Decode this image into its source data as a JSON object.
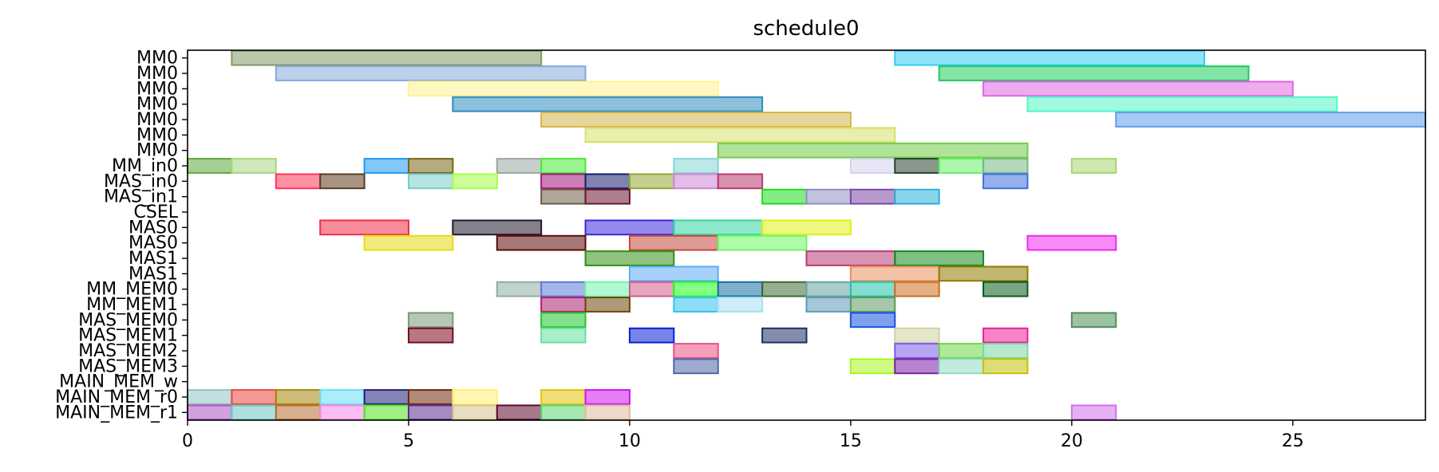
{
  "chart_data": {
    "type": "gantt",
    "title": "schedule0",
    "xlim": [
      0,
      28
    ],
    "xticks": [
      0,
      5,
      10,
      15,
      20,
      25
    ],
    "rows": [
      "MM0",
      "MM0",
      "MM0",
      "MM0",
      "MM0",
      "MM0",
      "MM0",
      "MM_in0",
      "MAS_in0",
      "MAS_in1",
      "CSEL",
      "MAS0",
      "MAS0",
      "MAS1",
      "MAS1",
      "MM_MEM0",
      "MM_MEM1",
      "MAS_MEM0",
      "MAS_MEM1",
      "MAS_MEM2",
      "MAS_MEM3",
      "MAIN_MEM_w",
      "MAIN_MEM_r0",
      "MAIN_MEM_r1"
    ],
    "bars": [
      {
        "row": 0,
        "start": 1,
        "end": 8,
        "color": "#7f9966"
      },
      {
        "row": 0,
        "start": 16,
        "end": 23,
        "color": "#33ccf5"
      },
      {
        "row": 1,
        "start": 2,
        "end": 9,
        "color": "#85a8db"
      },
      {
        "row": 1,
        "start": 17,
        "end": 24,
        "color": "#1fcc5c"
      },
      {
        "row": 2,
        "start": 5,
        "end": 12,
        "color": "#fff38f"
      },
      {
        "row": 2,
        "start": 18,
        "end": 25,
        "color": "#e066e0"
      },
      {
        "row": 3,
        "start": 6,
        "end": 13,
        "color": "#2e8cbf"
      },
      {
        "row": 3,
        "start": 19,
        "end": 26,
        "color": "#52f5c7"
      },
      {
        "row": 4,
        "start": 8,
        "end": 15,
        "color": "#d4b547"
      },
      {
        "row": 4,
        "start": 21,
        "end": 28,
        "color": "#5c9eeb"
      },
      {
        "row": 5,
        "start": 9,
        "end": 16,
        "color": "#d6e066"
      },
      {
        "row": 6,
        "start": 12,
        "end": 19,
        "color": "#70cc47"
      },
      {
        "row": 7,
        "start": 0,
        "end": 1,
        "color": "#5ca83d"
      },
      {
        "row": 7,
        "start": 1,
        "end": 2,
        "color": "#a8d680"
      },
      {
        "row": 7,
        "start": 4,
        "end": 5,
        "color": "#1f99f5"
      },
      {
        "row": 7,
        "start": 5,
        "end": 6,
        "color": "#7a6614"
      },
      {
        "row": 7,
        "start": 7,
        "end": 8,
        "color": "#99a89e"
      },
      {
        "row": 7,
        "start": 8,
        "end": 9,
        "color": "#47eb33"
      },
      {
        "row": 7,
        "start": 11,
        "end": 12,
        "color": "#85d6d6"
      },
      {
        "row": 7,
        "start": 15,
        "end": 16,
        "color": "#d1d1f0"
      },
      {
        "row": 7,
        "start": 16,
        "end": 17,
        "color": "#29422e"
      },
      {
        "row": 7,
        "start": 17,
        "end": 18,
        "color": "#66f066"
      },
      {
        "row": 7,
        "start": 18,
        "end": 19,
        "color": "#75b885"
      },
      {
        "row": 7,
        "start": 20,
        "end": 21,
        "color": "#a8d670"
      },
      {
        "row": 8,
        "start": 2,
        "end": 3,
        "color": "#ff3357"
      },
      {
        "row": 8,
        "start": 3,
        "end": 4,
        "color": "#5c3d1f"
      },
      {
        "row": 8,
        "start": 5,
        "end": 6,
        "color": "#7acccc"
      },
      {
        "row": 8,
        "start": 6,
        "end": 7,
        "color": "#a3ff47"
      },
      {
        "row": 8,
        "start": 8,
        "end": 9,
        "color": "#a3147a"
      },
      {
        "row": 8,
        "start": 9,
        "end": 10,
        "color": "#141f6b"
      },
      {
        "row": 8,
        "start": 10,
        "end": 11,
        "color": "#94a833"
      },
      {
        "row": 8,
        "start": 11,
        "end": 12,
        "color": "#cc85d6"
      },
      {
        "row": 8,
        "start": 12,
        "end": 13,
        "color": "#b83870"
      },
      {
        "row": 8,
        "start": 18,
        "end": 19,
        "color": "#3d70e0"
      },
      {
        "row": 9,
        "start": 8,
        "end": 9,
        "color": "#705c47"
      },
      {
        "row": 9,
        "start": 9,
        "end": 10,
        "color": "#6b142e"
      },
      {
        "row": 9,
        "start": 13,
        "end": 14,
        "color": "#1fdb1f"
      },
      {
        "row": 9,
        "start": 14,
        "end": 15,
        "color": "#8f8fc2"
      },
      {
        "row": 9,
        "start": 15,
        "end": 16,
        "color": "#7a47a3"
      },
      {
        "row": 9,
        "start": 16,
        "end": 17,
        "color": "#29b0db"
      },
      {
        "row": 11,
        "start": 3,
        "end": 5,
        "color": "#f02e47"
      },
      {
        "row": 11,
        "start": 6,
        "end": 8,
        "color": "#1f1a29"
      },
      {
        "row": 11,
        "start": 9,
        "end": 11,
        "color": "#3d29db"
      },
      {
        "row": 11,
        "start": 11,
        "end": 13,
        "color": "#33d6a3"
      },
      {
        "row": 11,
        "start": 13,
        "end": 15,
        "color": "#e0f014"
      },
      {
        "row": 12,
        "start": 4,
        "end": 6,
        "color": "#e6db14"
      },
      {
        "row": 12,
        "start": 7,
        "end": 9,
        "color": "#5c0a0a"
      },
      {
        "row": 12,
        "start": 10,
        "end": 12,
        "color": "#c2473d"
      },
      {
        "row": 12,
        "start": 12,
        "end": 14,
        "color": "#70f566"
      },
      {
        "row": 12,
        "start": 19,
        "end": 21,
        "color": "#f029f0"
      },
      {
        "row": 13,
        "start": 9,
        "end": 11,
        "color": "#338f14"
      },
      {
        "row": 13,
        "start": 14,
        "end": 16,
        "color": "#b83d75"
      },
      {
        "row": 13,
        "start": 16,
        "end": 18,
        "color": "#148a1f"
      },
      {
        "row": 14,
        "start": 10,
        "end": 12,
        "color": "#5cadf5"
      },
      {
        "row": 14,
        "start": 15,
        "end": 17,
        "color": "#eb8f5c"
      },
      {
        "row": 14,
        "start": 17,
        "end": 19,
        "color": "#8f7a00"
      },
      {
        "row": 15,
        "start": 7,
        "end": 8,
        "color": "#8fada3"
      },
      {
        "row": 15,
        "start": 8,
        "end": 9,
        "color": "#5c7ad6"
      },
      {
        "row": 15,
        "start": 9,
        "end": 10,
        "color": "#70f5ad"
      },
      {
        "row": 15,
        "start": 10,
        "end": 11,
        "color": "#d15c8a"
      },
      {
        "row": 15,
        "start": 11,
        "end": 12,
        "color": "#1fff1f"
      },
      {
        "row": 15,
        "start": 12,
        "end": 13,
        "color": "#14709e"
      },
      {
        "row": 15,
        "start": 13,
        "end": 14,
        "color": "#3d6b33"
      },
      {
        "row": 15,
        "start": 14,
        "end": 15,
        "color": "#66a3a3"
      },
      {
        "row": 15,
        "start": 15,
        "end": 16,
        "color": "#1fc2a8"
      },
      {
        "row": 15,
        "start": 16,
        "end": 17,
        "color": "#cc701f"
      },
      {
        "row": 15,
        "start": 18,
        "end": 19,
        "color": "#0a5c1f"
      },
      {
        "row": 16,
        "start": 8,
        "end": 9,
        "color": "#ad1f70"
      },
      {
        "row": 16,
        "start": 9,
        "end": 10,
        "color": "#6b470a"
      },
      {
        "row": 16,
        "start": 11,
        "end": 12,
        "color": "#33c2f0"
      },
      {
        "row": 16,
        "start": 12,
        "end": 13,
        "color": "#a8e0f0"
      },
      {
        "row": 16,
        "start": 14,
        "end": 15,
        "color": "#5c99b8"
      },
      {
        "row": 16,
        "start": 15,
        "end": 16,
        "color": "#5c9961"
      },
      {
        "row": 17,
        "start": 5,
        "end": 6,
        "color": "#7a997a"
      },
      {
        "row": 17,
        "start": 8,
        "end": 9,
        "color": "#1fc72e"
      },
      {
        "row": 17,
        "start": 15,
        "end": 16,
        "color": "#1452e0"
      },
      {
        "row": 17,
        "start": 20,
        "end": 21,
        "color": "#4d8f57"
      },
      {
        "row": 18,
        "start": 5,
        "end": 6,
        "color": "#7a0a1f"
      },
      {
        "row": 18,
        "start": 8,
        "end": 9,
        "color": "#66e09e"
      },
      {
        "row": 18,
        "start": 10,
        "end": 11,
        "color": "#0a1fd6"
      },
      {
        "row": 18,
        "start": 13,
        "end": 14,
        "color": "#1f2e66"
      },
      {
        "row": 18,
        "start": 16,
        "end": 17,
        "color": "#d1d1a3"
      },
      {
        "row": 18,
        "start": 18,
        "end": 19,
        "color": "#eb1f99"
      },
      {
        "row": 19,
        "start": 11,
        "end": 12,
        "color": "#eb5285"
      },
      {
        "row": 19,
        "start": 16,
        "end": 17,
        "color": "#7a5ceb"
      },
      {
        "row": 19,
        "start": 17,
        "end": 18,
        "color": "#70d647"
      },
      {
        "row": 19,
        "start": 18,
        "end": 19,
        "color": "#7ad6a3"
      },
      {
        "row": 20,
        "start": 11,
        "end": 12,
        "color": "#4d66a8"
      },
      {
        "row": 20,
        "start": 15,
        "end": 16,
        "color": "#a8f51f"
      },
      {
        "row": 20,
        "start": 16,
        "end": 17,
        "color": "#7a1fa8"
      },
      {
        "row": 20,
        "start": 17,
        "end": 18,
        "color": "#8fdbc2"
      },
      {
        "row": 20,
        "start": 18,
        "end": 19,
        "color": "#c2c20a"
      },
      {
        "row": 22,
        "start": 0,
        "end": 1,
        "color": "#8fc2c2"
      },
      {
        "row": 22,
        "start": 1,
        "end": 2,
        "color": "#eb473d"
      },
      {
        "row": 22,
        "start": 2,
        "end": 3,
        "color": "#a8850a"
      },
      {
        "row": 22,
        "start": 3,
        "end": 4,
        "color": "#66e0f5"
      },
      {
        "row": 22,
        "start": 4,
        "end": 5,
        "color": "#1f1f7a"
      },
      {
        "row": 22,
        "start": 5,
        "end": 6,
        "color": "#70290a"
      },
      {
        "row": 22,
        "start": 6,
        "end": 7,
        "color": "#fff070"
      },
      {
        "row": 22,
        "start": 8,
        "end": 9,
        "color": "#e6c20a"
      },
      {
        "row": 22,
        "start": 9,
        "end": 10,
        "color": "#cc14eb"
      },
      {
        "row": 23,
        "start": 0,
        "end": 1,
        "color": "#ad52c2"
      },
      {
        "row": 23,
        "start": 1,
        "end": 2,
        "color": "#6bc2c2"
      },
      {
        "row": 23,
        "start": 2,
        "end": 3,
        "color": "#b86b2e"
      },
      {
        "row": 23,
        "start": 3,
        "end": 4,
        "color": "#f585e6"
      },
      {
        "row": 23,
        "start": 4,
        "end": 5,
        "color": "#52e01f"
      },
      {
        "row": 23,
        "start": 5,
        "end": 6,
        "color": "#5c2e8f"
      },
      {
        "row": 23,
        "start": 6,
        "end": 7,
        "color": "#d6c28a"
      },
      {
        "row": 23,
        "start": 7,
        "end": 8,
        "color": "#5c0a2e"
      },
      {
        "row": 23,
        "start": 8,
        "end": 9,
        "color": "#5cd670"
      },
      {
        "row": 23,
        "start": 9,
        "end": 10,
        "color": "#e0b89e"
      },
      {
        "row": 23,
        "start": 20,
        "end": 21,
        "color": "#d170eb"
      }
    ],
    "grid": false,
    "legend": "none"
  }
}
